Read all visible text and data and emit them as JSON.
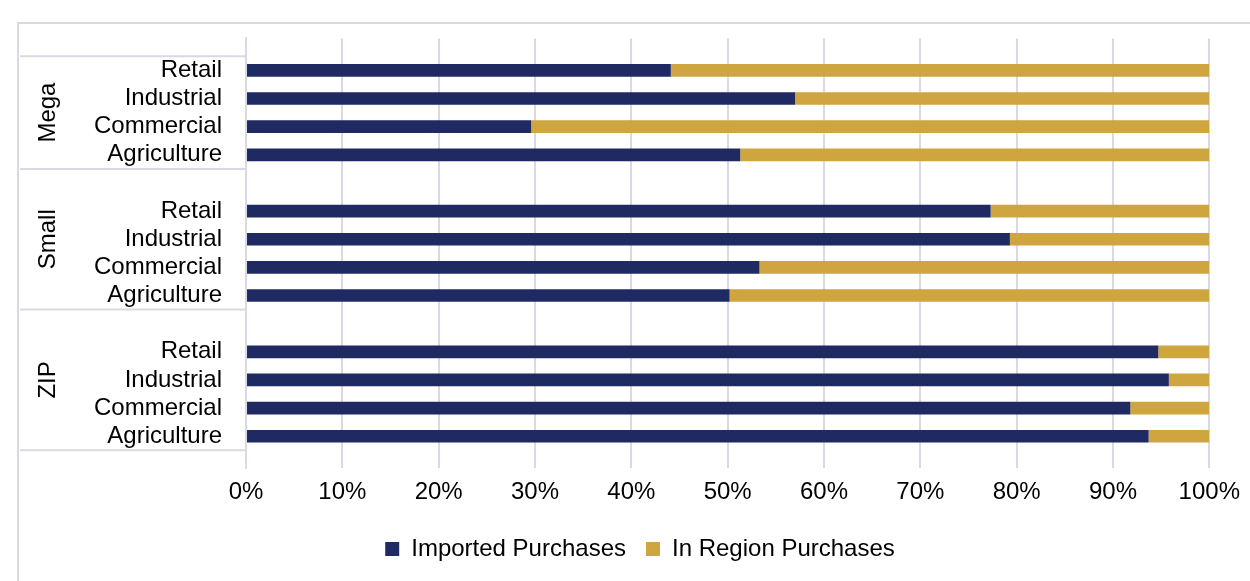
{
  "chart_data": {
    "type": "bar",
    "orientation": "horizontal",
    "stacked": true,
    "categories": [
      "Retail",
      "Industrial",
      "Commercial",
      "Agriculture",
      "Retail",
      "Industrial",
      "Commercial",
      "Agriculture",
      "Retail",
      "Industrial",
      "Commercial",
      "Agriculture"
    ],
    "series": [
      {
        "name": "Imported Purchases",
        "color": "#1f2a63",
        "values": [
          44.1,
          57.0,
          29.6,
          51.3,
          77.3,
          79.3,
          53.3,
          50.2,
          94.7,
          95.8,
          91.8,
          93.7
        ]
      },
      {
        "name": "In Region Purchases",
        "color": "#cfa540",
        "values": [
          55.9,
          43.0,
          70.4,
          48.7,
          22.7,
          20.7,
          46.7,
          49.8,
          5.3,
          4.2,
          8.2,
          6.3
        ]
      }
    ],
    "xlim": [
      0,
      100
    ],
    "xticks": [
      {
        "value": 0,
        "label": "0%"
      },
      {
        "value": 10,
        "label": "10%"
      },
      {
        "value": 20,
        "label": "20%"
      },
      {
        "value": 30,
        "label": "30%"
      },
      {
        "value": 40,
        "label": "40%"
      },
      {
        "value": 50,
        "label": "50%"
      },
      {
        "value": 60,
        "label": "60%"
      },
      {
        "value": 70,
        "label": "70%"
      },
      {
        "value": 80,
        "label": "80%"
      },
      {
        "value": 90,
        "label": "90%"
      },
      {
        "value": 100,
        "label": "100%"
      }
    ],
    "grid": "x",
    "legend": "bottom",
    "annotations": [
      "Mega",
      "Small",
      "ZIP"
    ]
  }
}
